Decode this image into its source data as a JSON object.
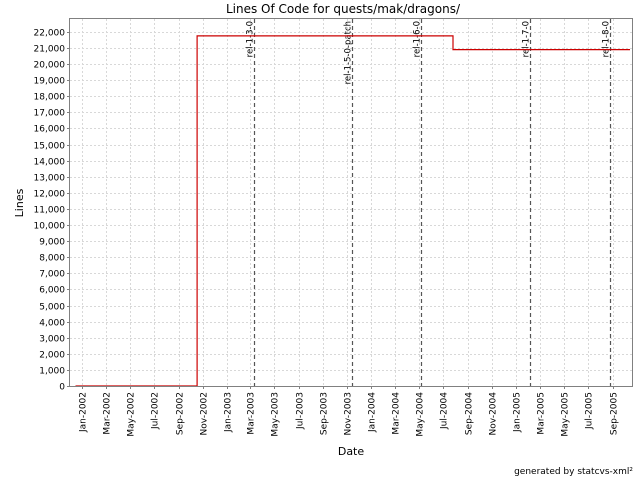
{
  "chart_data": {
    "type": "line",
    "title": "Lines Of Code for quests/mak/dragons/",
    "xlabel": "Date",
    "ylabel": "Lines",
    "ylim": [
      0,
      22800
    ],
    "xlim": [
      "2001-12-01",
      "2005-10-20"
    ],
    "grid": true,
    "yticks": [
      0,
      1000,
      2000,
      3000,
      4000,
      5000,
      6000,
      7000,
      8000,
      9000,
      10000,
      11000,
      12000,
      13000,
      14000,
      15000,
      16000,
      17000,
      18000,
      19000,
      20000,
      21000,
      22000
    ],
    "ytick_labels": [
      "0",
      "1,000",
      "2,000",
      "3,000",
      "4,000",
      "5,000",
      "6,000",
      "7,000",
      "8,000",
      "9,000",
      "10,000",
      "11,000",
      "12,000",
      "13,000",
      "14,000",
      "15,000",
      "16,000",
      "17,000",
      "18,000",
      "19,000",
      "20,000",
      "21,000",
      "22,000"
    ],
    "xticks": [
      {
        "date": "2002-01-01",
        "label": "Jan-2002"
      },
      {
        "date": "2002-03-01",
        "label": "Mar-2002"
      },
      {
        "date": "2002-05-01",
        "label": "May-2002"
      },
      {
        "date": "2002-07-01",
        "label": "Jul-2002"
      },
      {
        "date": "2002-09-01",
        "label": "Sep-2002"
      },
      {
        "date": "2002-11-01",
        "label": "Nov-2002"
      },
      {
        "date": "2003-01-01",
        "label": "Jan-2003"
      },
      {
        "date": "2003-03-01",
        "label": "Mar-2003"
      },
      {
        "date": "2003-05-01",
        "label": "May-2003"
      },
      {
        "date": "2003-07-01",
        "label": "Jul-2003"
      },
      {
        "date": "2003-09-01",
        "label": "Sep-2003"
      },
      {
        "date": "2003-11-01",
        "label": "Nov-2003"
      },
      {
        "date": "2004-01-01",
        "label": "Jan-2004"
      },
      {
        "date": "2004-03-01",
        "label": "Mar-2004"
      },
      {
        "date": "2004-05-01",
        "label": "May-2004"
      },
      {
        "date": "2004-07-01",
        "label": "Jul-2004"
      },
      {
        "date": "2004-09-01",
        "label": "Sep-2004"
      },
      {
        "date": "2004-11-01",
        "label": "Nov-2004"
      },
      {
        "date": "2005-01-01",
        "label": "Jan-2005"
      },
      {
        "date": "2005-03-01",
        "label": "Mar-2005"
      },
      {
        "date": "2005-05-01",
        "label": "May-2005"
      },
      {
        "date": "2005-07-01",
        "label": "Jul-2005"
      },
      {
        "date": "2005-09-01",
        "label": "Sep-2005"
      }
    ],
    "series": [
      {
        "color": "#cc0000",
        "step": true,
        "points": [
          {
            "date": "2001-12-15",
            "value": 0
          },
          {
            "date": "2002-10-18",
            "value": 0
          },
          {
            "date": "2002-10-18",
            "value": 21750
          },
          {
            "date": "2004-07-25",
            "value": 21750
          },
          {
            "date": "2004-07-25",
            "value": 20900
          },
          {
            "date": "2005-10-15",
            "value": 20900
          }
        ]
      }
    ],
    "markers": [
      {
        "date": "2003-03-10",
        "label": "rel-1-3-0"
      },
      {
        "date": "2003-11-12",
        "label": "rel-1-5-0-patch"
      },
      {
        "date": "2004-05-05",
        "label": "rel-1-6-0"
      },
      {
        "date": "2005-02-05",
        "label": "rel-1-7-0"
      },
      {
        "date": "2005-08-25",
        "label": "rel-1-8-0"
      }
    ],
    "marker_color": "#555555"
  },
  "footer": "generated by statcvs-xml²"
}
